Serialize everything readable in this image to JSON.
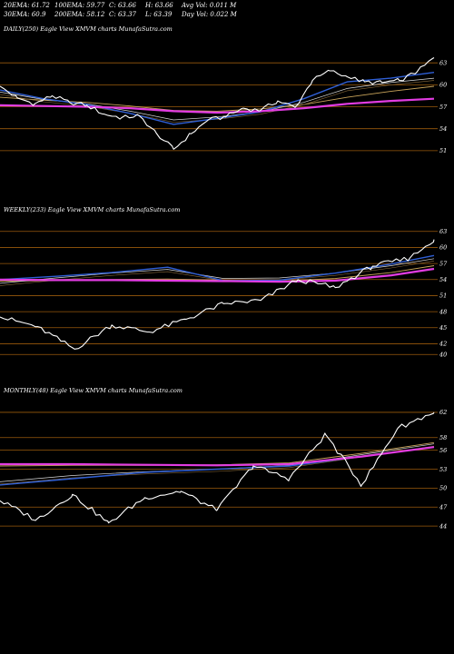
{
  "header": {
    "row1": [
      "20EMA: 61.72",
      "100EMA: 59.77",
      "C: 63.66",
      "H: 63.66",
      "Avg Vol: 0.011  M"
    ],
    "row2": [
      "30EMA: 60.9",
      "200EMA: 58.12",
      "C: 63.37",
      "L: 63.39",
      "Day Vol: 0.022  M"
    ]
  },
  "colors": {
    "background": "#000000",
    "price": "#ffffff",
    "ema_blue": "#2f5fd6",
    "ema_magenta": "#e23ce2",
    "grid": "#9a5a0c",
    "ema_tan": "#c8a35a"
  },
  "chart_data": [
    {
      "type": "line",
      "title": "DAILY(250) Eagle  View  XMVM charts MunafaSutra.com",
      "ylim": [
        49,
        66
      ],
      "yticks": [
        63,
        60,
        57,
        54,
        51
      ],
      "series": [
        {
          "role": "price",
          "x": [
            0,
            10,
            20,
            30,
            40,
            50,
            60,
            70,
            80,
            90,
            100,
            110,
            120,
            130,
            140,
            150,
            160,
            170,
            180,
            190,
            200,
            210,
            220,
            230,
            240,
            250
          ],
          "values": [
            59.8,
            58.2,
            57.4,
            58.5,
            57.6,
            57.2,
            56.0,
            55.5,
            55.8,
            53.4,
            51.2,
            53.3,
            55.2,
            55.6,
            56.8,
            56.5,
            57.8,
            56.9,
            60.6,
            61.9,
            61.1,
            60.4,
            60.3,
            60.6,
            61.7,
            63.7
          ]
        },
        {
          "role": "ema20",
          "x": [
            0,
            25,
            50,
            75,
            100,
            125,
            150,
            175,
            200,
            225,
            250
          ],
          "values": [
            59.3,
            58.1,
            57.3,
            56.1,
            54.6,
            55.4,
            56.3,
            58.1,
            60.4,
            60.9,
            61.7
          ]
        },
        {
          "role": "ema30",
          "x": [
            0,
            25,
            50,
            75,
            100,
            125,
            150,
            175,
            200,
            225,
            250
          ],
          "values": [
            59.0,
            58.0,
            57.4,
            56.4,
            55.2,
            55.6,
            56.3,
            57.6,
            59.5,
            60.3,
            60.9
          ]
        },
        {
          "role": "ema100",
          "x": [
            0,
            25,
            50,
            75,
            100,
            125,
            150,
            175,
            200,
            225,
            250
          ],
          "values": [
            58.3,
            57.9,
            57.6,
            57.1,
            56.5,
            56.4,
            56.7,
            57.3,
            58.3,
            59.1,
            59.8
          ]
        },
        {
          "role": "ema200",
          "x": [
            0,
            25,
            50,
            75,
            100,
            125,
            150,
            175,
            200,
            225,
            250
          ],
          "values": [
            57.2,
            57.1,
            57.0,
            56.8,
            56.4,
            56.2,
            56.4,
            56.8,
            57.4,
            57.8,
            58.1
          ]
        }
      ]
    },
    {
      "type": "line",
      "title": "WEEKLY(233) Eagle  View  XMVM charts MunafaSutra.com",
      "ylim": [
        38,
        65
      ],
      "yticks": [
        63,
        60,
        57,
        54,
        51,
        48,
        45,
        42,
        40
      ],
      "series": [
        {
          "role": "price",
          "x": [
            0,
            20,
            40,
            60,
            80,
            100,
            120,
            140,
            160,
            180,
            200,
            220,
            233
          ],
          "values": [
            47.0,
            45.2,
            41.0,
            45.5,
            44.2,
            46.6,
            49.5,
            50.1,
            54.0,
            52.5,
            56.5,
            58.0,
            61.5
          ]
        },
        {
          "role": "ema20",
          "x": [
            0,
            30,
            60,
            90,
            120,
            150,
            180,
            210,
            233
          ],
          "values": [
            54.0,
            54.6,
            55.3,
            56.3,
            53.8,
            53.9,
            55.2,
            56.9,
            58.5
          ]
        },
        {
          "role": "ema30",
          "x": [
            0,
            30,
            60,
            90,
            120,
            150,
            180,
            210,
            233
          ],
          "values": [
            53.3,
            54.3,
            55.2,
            55.9,
            54.2,
            54.3,
            55.2,
            56.6,
            57.9
          ]
        },
        {
          "role": "ema100",
          "x": [
            0,
            30,
            60,
            90,
            120,
            150,
            180,
            210,
            233
          ],
          "values": [
            53.7,
            53.8,
            54.0,
            54.1,
            53.9,
            53.7,
            54.2,
            55.3,
            56.6
          ]
        },
        {
          "role": "ema200",
          "x": [
            0,
            30,
            60,
            90,
            120,
            150,
            180,
            210,
            233
          ],
          "values": [
            54.0,
            53.9,
            53.9,
            53.8,
            53.7,
            53.6,
            53.8,
            54.8,
            56.0
          ]
        }
      ]
    },
    {
      "type": "line",
      "title": "MONTHLY(48) Eagle  View  XMVM charts MunafaSutra.com",
      "ylim": [
        41,
        64
      ],
      "yticks": [
        62,
        58,
        56,
        53,
        50,
        47,
        44
      ],
      "series": [
        {
          "role": "price",
          "x": [
            0,
            4,
            8,
            12,
            16,
            20,
            24,
            28,
            32,
            36,
            40,
            44,
            48
          ],
          "values": [
            48.0,
            45.0,
            49.0,
            44.5,
            48.5,
            49.5,
            46.5,
            53.5,
            51.5,
            58.5,
            50.5,
            59.5,
            62.0
          ]
        },
        {
          "role": "ema20",
          "x": [
            0,
            8,
            16,
            24,
            32,
            40,
            48
          ],
          "values": [
            50.5,
            51.5,
            52.5,
            53.0,
            53.5,
            55.0,
            56.5
          ]
        },
        {
          "role": "ema30",
          "x": [
            0,
            8,
            16,
            24,
            32,
            40,
            48
          ],
          "values": [
            51.0,
            52.0,
            52.6,
            53.0,
            53.6,
            55.3,
            57.0
          ]
        },
        {
          "role": "ema100",
          "x": [
            0,
            8,
            16,
            24,
            32,
            40,
            48
          ],
          "values": [
            53.5,
            53.6,
            53.6,
            53.7,
            54.0,
            55.5,
            57.2
          ]
        },
        {
          "role": "ema200",
          "x": [
            0,
            8,
            16,
            24,
            32,
            40,
            48
          ],
          "values": [
            53.8,
            53.8,
            53.7,
            53.6,
            53.8,
            55.0,
            56.5
          ]
        }
      ]
    }
  ]
}
